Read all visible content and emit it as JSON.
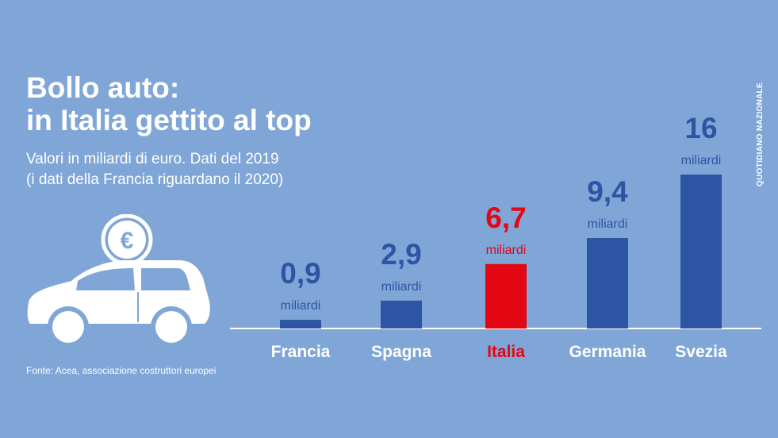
{
  "title_lines": [
    "Bollo auto:",
    "in Italia gettito al top"
  ],
  "subtitle_lines": [
    "Valori in miliardi di euro. Dati del 2019",
    "(i dati della Francia  riguardano il 2020)"
  ],
  "source": "Fonte: Acea, associazione  costruttori europei",
  "brand": "QUOTIDIANO NAZIONALE",
  "colors": {
    "background": "#7fa6d7",
    "bar": "#2e55a3",
    "highlight": "#e30613",
    "text": "#ffffff"
  },
  "chart_data": {
    "type": "bar",
    "categories": [
      "Francia",
      "Spagna",
      "Italia",
      "Germania",
      "Svezia"
    ],
    "values": [
      0.9,
      2.9,
      6.7,
      9.4,
      16
    ],
    "value_labels": [
      "0,9",
      "2,9",
      "6,7",
      "9,4",
      "16"
    ],
    "unit_label": "miliardi",
    "highlight_category": "Italia",
    "ylim": [
      0,
      16
    ],
    "grid": false,
    "title": "",
    "xlabel": "",
    "ylabel": ""
  }
}
